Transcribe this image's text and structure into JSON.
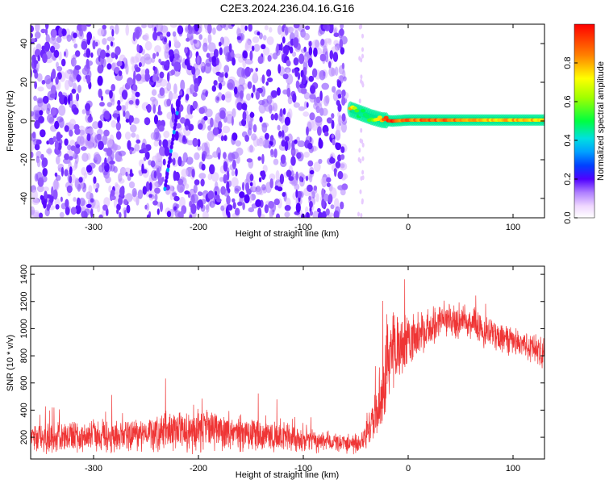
{
  "title": "C2E3.2024.236.04.16.G16",
  "chart_data": [
    {
      "type": "heatmap",
      "xlabel": "Height of straight line (km)",
      "ylabel": "Frequency (Hz)",
      "xlim": [
        -360,
        130
      ],
      "ylim": [
        -50,
        50
      ],
      "x_ticks": [
        -300,
        -200,
        -100,
        0,
        100
      ],
      "x_tick_labels": [
        "-300",
        "-200",
        "-100",
        "0",
        "100"
      ],
      "y_ticks": [
        -40,
        -20,
        0,
        20,
        40
      ],
      "y_tick_labels": [
        "-40",
        "-20",
        "0",
        "20",
        "40"
      ],
      "colorbar": {
        "label": "Normalized spectral amplitude",
        "range": [
          0,
          1
        ],
        "ticks": [
          0.0,
          0.2,
          0.4,
          0.6,
          0.8
        ],
        "tick_labels": [
          "0.0",
          "0.2",
          "0.4",
          "0.6",
          "0.8"
        ],
        "colormap": "rainbow"
      },
      "noise_region_x": [
        -360,
        -60
      ],
      "noise_amplitude_range": [
        0.0,
        0.2
      ],
      "streak": {
        "x": [
          -232,
          -218
        ],
        "y": [
          -35,
          12
        ],
        "amplitude": 0.2
      },
      "signal_trace": {
        "x": [
          -55,
          -45,
          -35,
          -25,
          -15,
          0,
          20,
          50,
          80,
          100,
          130
        ],
        "y": [
          6,
          4,
          2,
          0.5,
          0,
          0.5,
          0.5,
          0.5,
          0.5,
          0.5,
          0.5
        ],
        "amplitude": [
          0.8,
          0.5,
          0.6,
          0.9,
          1.0,
          0.9,
          0.95,
          0.9,
          0.8,
          0.85,
          0.8
        ]
      }
    },
    {
      "type": "line",
      "xlabel": "Height of straight line (km)",
      "ylabel": "SNR (10 * v/v)",
      "xlim": [
        -360,
        130
      ],
      "ylim": [
        40,
        1460
      ],
      "x_ticks": [
        -300,
        -200,
        -100,
        0,
        100
      ],
      "x_tick_labels": [
        "-300",
        "-200",
        "-100",
        "0",
        "100"
      ],
      "y_ticks": [
        200,
        400,
        600,
        800,
        1000,
        1200,
        1400
      ],
      "y_tick_labels": [
        "200",
        "400",
        "600",
        "800",
        "1000",
        "1200",
        "1400"
      ],
      "series": [
        {
          "color": "#ef3535",
          "x": [
            -360,
            -340,
            -320,
            -300,
            -280,
            -260,
            -240,
            -220,
            -200,
            -180,
            -160,
            -140,
            -120,
            -100,
            -80,
            -60,
            -45,
            -35,
            -30,
            -25,
            -20,
            -15,
            -10,
            -5,
            0,
            10,
            20,
            30,
            40,
            50,
            60,
            70,
            80,
            90,
            100,
            110,
            120,
            130
          ],
          "y": [
            200,
            200,
            205,
            215,
            210,
            220,
            235,
            250,
            265,
            250,
            230,
            210,
            195,
            180,
            165,
            150,
            150,
            300,
            350,
            550,
            700,
            820,
            850,
            880,
            920,
            950,
            1000,
            1050,
            1060,
            1060,
            1040,
            990,
            960,
            930,
            900,
            880,
            850,
            820
          ],
          "spread": [
            130,
            130,
            130,
            140,
            140,
            150,
            160,
            180,
            200,
            180,
            160,
            140,
            120,
            110,
            90,
            80,
            80,
            200,
            260,
            320,
            360,
            380,
            300,
            260,
            230,
            200,
            180,
            170,
            160,
            150,
            150,
            140,
            140,
            130,
            130,
            130,
            130,
            130
          ]
        }
      ]
    }
  ]
}
